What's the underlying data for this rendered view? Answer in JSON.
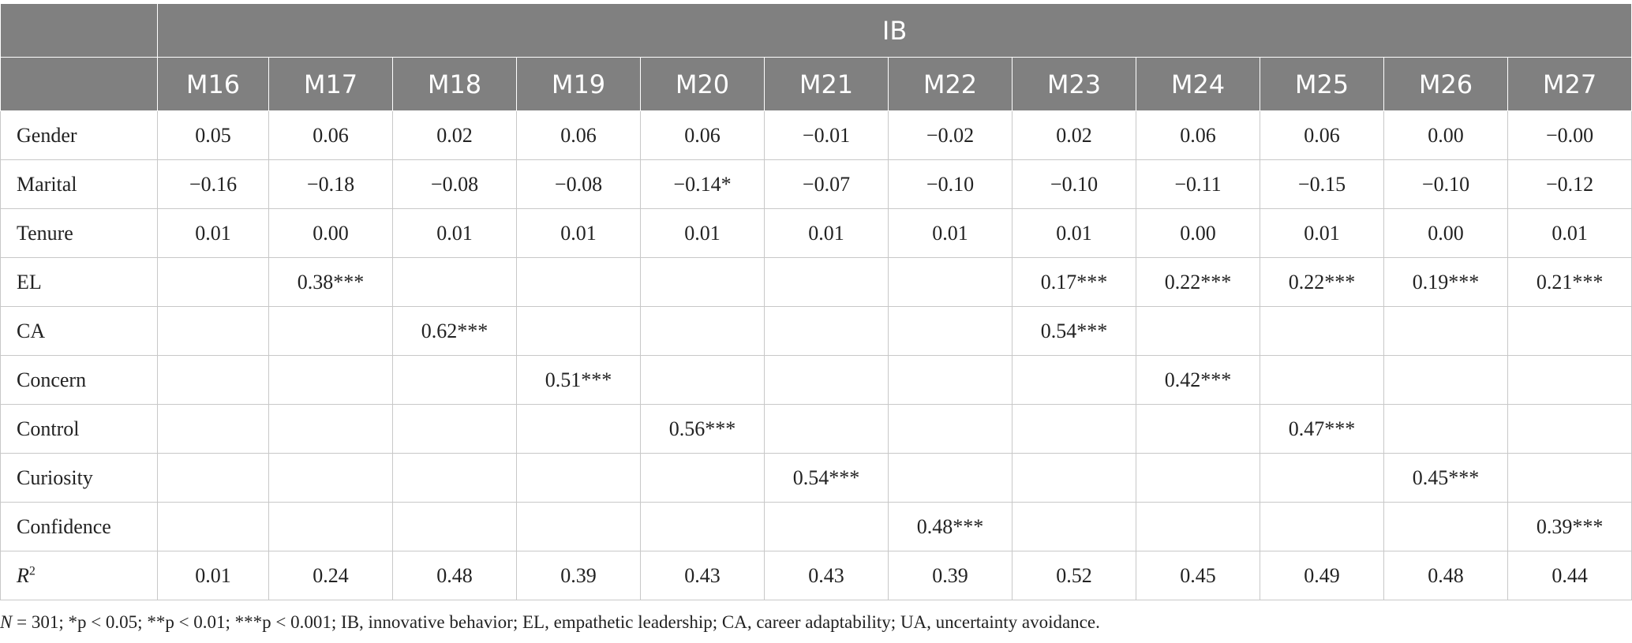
{
  "table": {
    "group_header": "IB",
    "models": [
      "M16",
      "M17",
      "M18",
      "M19",
      "M20",
      "M21",
      "M22",
      "M23",
      "M24",
      "M25",
      "M26",
      "M27"
    ],
    "rows": [
      {
        "label": "Gender",
        "cells": [
          "0.05",
          "0.06",
          "0.02",
          "0.06",
          "0.06",
          "−0.01",
          "−0.02",
          "0.02",
          "0.06",
          "0.06",
          "0.00",
          "−0.00"
        ]
      },
      {
        "label": "Marital",
        "cells": [
          "−0.16",
          "−0.18",
          "−0.08",
          "−0.08",
          "−0.14*",
          "−0.07",
          "−0.10",
          "−0.10",
          "−0.11",
          "−0.15",
          "−0.10",
          "−0.12"
        ]
      },
      {
        "label": "Tenure",
        "cells": [
          "0.01",
          "0.00",
          "0.01",
          "0.01",
          "0.01",
          "0.01",
          "0.01",
          "0.01",
          "0.00",
          "0.01",
          "0.00",
          "0.01"
        ]
      },
      {
        "label": "EL",
        "cells": [
          "",
          "0.38***",
          "",
          "",
          "",
          "",
          "",
          "0.17***",
          "0.22***",
          "0.22***",
          "0.19***",
          "0.21***"
        ]
      },
      {
        "label": "CA",
        "cells": [
          "",
          "",
          "0.62***",
          "",
          "",
          "",
          "",
          "0.54***",
          "",
          "",
          "",
          ""
        ]
      },
      {
        "label": "Concern",
        "cells": [
          "",
          "",
          "",
          "0.51***",
          "",
          "",
          "",
          "",
          "0.42***",
          "",
          "",
          ""
        ]
      },
      {
        "label": "Control",
        "cells": [
          "",
          "",
          "",
          "",
          "0.56***",
          "",
          "",
          "",
          "",
          "0.47***",
          "",
          ""
        ]
      },
      {
        "label": "Curiosity",
        "cells": [
          "",
          "",
          "",
          "",
          "",
          "0.54***",
          "",
          "",
          "",
          "",
          "0.45***",
          ""
        ]
      },
      {
        "label": "Confidence",
        "cells": [
          "",
          "",
          "",
          "",
          "",
          "",
          "0.48***",
          "",
          "",
          "",
          "",
          "0.39***"
        ]
      },
      {
        "label_main": "R",
        "label_sup": "2",
        "cells": [
          "0.01",
          "0.24",
          "0.48",
          "0.39",
          "0.43",
          "0.43",
          "0.39",
          "0.52",
          "0.45",
          "0.49",
          "0.48",
          "0.44"
        ]
      }
    ]
  },
  "note": {
    "n_symbol": "N",
    "text": " = 301; *p < 0.05; **p < 0.01; ***p < 0.001; IB, innovative behavior; EL, empathetic leadership; CA, career adaptability; UA, uncertainty avoidance."
  }
}
